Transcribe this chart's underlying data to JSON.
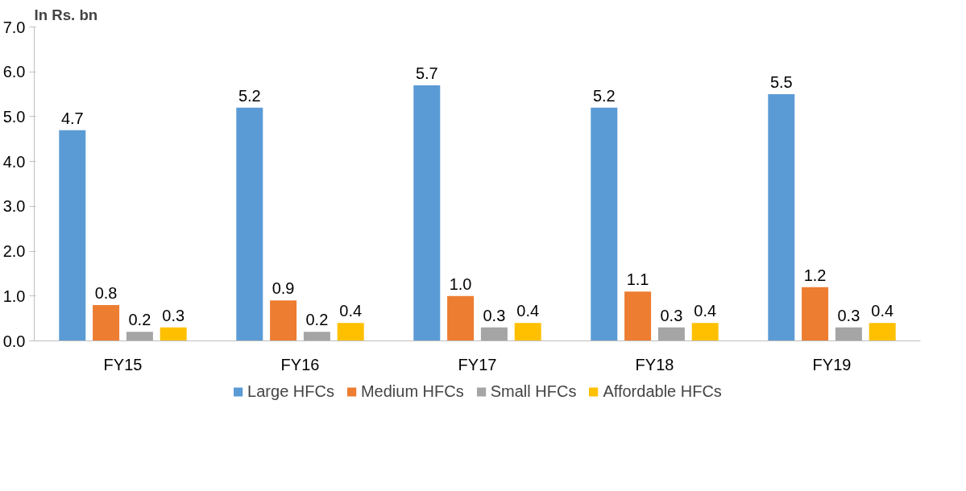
{
  "chart_data": {
    "type": "bar",
    "ylabel": "In Rs. bn",
    "categories": [
      "FY15",
      "FY16",
      "FY17",
      "FY18",
      "FY19"
    ],
    "series": [
      {
        "name": "Large HFCs",
        "color": "#5b9bd5",
        "values": [
          4.7,
          5.2,
          5.7,
          5.2,
          5.5
        ]
      },
      {
        "name": "Medium HFCs",
        "color": "#ed7d31",
        "values": [
          0.8,
          0.9,
          1.0,
          1.1,
          1.2
        ]
      },
      {
        "name": "Small HFCs",
        "color": "#a5a5a5",
        "values": [
          0.2,
          0.2,
          0.3,
          0.3,
          0.3
        ]
      },
      {
        "name": "Affordable HFCs",
        "color": "#ffc000",
        "values": [
          0.3,
          0.4,
          0.4,
          0.4,
          0.4
        ]
      }
    ],
    "ylim": [
      0,
      7
    ],
    "yticks": [
      {
        "value": 0,
        "label": "0.0"
      },
      {
        "value": 1,
        "label": "1.0"
      },
      {
        "value": 2,
        "label": "2.0"
      },
      {
        "value": 3,
        "label": "3.0"
      },
      {
        "value": 4,
        "label": "4.0"
      },
      {
        "value": 5,
        "label": "5.0"
      },
      {
        "value": 6,
        "label": "6.0"
      },
      {
        "value": 7,
        "label": "7.0"
      }
    ],
    "value_labels": [
      [
        "4.7",
        "5.2",
        "5.7",
        "5.2",
        "5.5"
      ],
      [
        "0.8",
        "0.9",
        "1.0",
        "1.1",
        "1.2"
      ],
      [
        "0.2",
        "0.2",
        "0.3",
        "0.3",
        "0.3"
      ],
      [
        "0.3",
        "0.4",
        "0.4",
        "0.4",
        "0.4"
      ]
    ],
    "grid": false,
    "legend": "bottom"
  }
}
